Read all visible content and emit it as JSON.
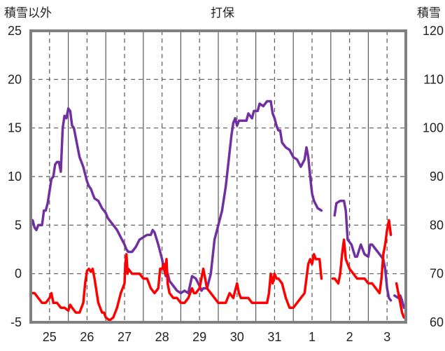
{
  "chart_data": {
    "type": "line",
    "title": "打保",
    "ylabel_left": "積雪以外",
    "ylabel_right": "積雪",
    "x_ticks": [
      "25",
      "26",
      "27",
      "28",
      "29",
      "30",
      "31",
      "1",
      "2",
      "3"
    ],
    "y_left_ticks": [
      "25",
      "20",
      "15",
      "10",
      "5",
      "0",
      "-5"
    ],
    "y_right_ticks": [
      "120",
      "110",
      "100",
      "90",
      "80",
      "70",
      "60"
    ],
    "ylim_left": [
      -5,
      25
    ],
    "ylim_right": [
      60,
      120
    ],
    "xlim": [
      24.5,
      34.5
    ],
    "grid": true,
    "colors": {
      "snow": "#7030a0",
      "temperature": "#ff0000",
      "frame": "#808080",
      "grid": "#595959"
    },
    "series": [
      {
        "key": "snow",
        "axis": "right",
        "segments": [
          [
            [
              24.5,
              80.0
            ],
            [
              24.55,
              81.0
            ],
            [
              24.6,
              79.5
            ],
            [
              24.65,
              79.0
            ],
            [
              24.7,
              80.0
            ],
            [
              24.75,
              80.0
            ],
            [
              24.8,
              80.0
            ],
            [
              24.85,
              83.0
            ],
            [
              24.9,
              83.0
            ],
            [
              24.95,
              84.5
            ],
            [
              25.0,
              87.0
            ],
            [
              25.05,
              89.5
            ],
            [
              25.1,
              90.0
            ],
            [
              25.15,
              92.5
            ],
            [
              25.2,
              93.0
            ],
            [
              25.25,
              93.0
            ],
            [
              25.3,
              91.0
            ],
            [
              25.35,
              100.0
            ],
            [
              25.4,
              102.5
            ],
            [
              25.45,
              102.0
            ],
            [
              25.5,
              104.0
            ],
            [
              25.55,
              103.5
            ],
            [
              25.6,
              100.5
            ],
            [
              25.65,
              100.0
            ],
            [
              25.7,
              98.0
            ],
            [
              25.75,
              96.0
            ],
            [
              25.8,
              94.0
            ],
            [
              25.85,
              93.0
            ],
            [
              25.9,
              92.0
            ],
            [
              25.95,
              90.5
            ],
            [
              26.0,
              89.0
            ],
            [
              26.05,
              88.0
            ],
            [
              26.1,
              87.5
            ],
            [
              26.15,
              86.5
            ],
            [
              26.2,
              85.5
            ],
            [
              26.3,
              85.0
            ],
            [
              26.4,
              83.5
            ],
            [
              26.5,
              82.5
            ],
            [
              26.55,
              81.5
            ],
            [
              26.6,
              81.0
            ],
            [
              26.7,
              80.0
            ],
            [
              26.8,
              79.0
            ],
            [
              26.9,
              77.5
            ],
            [
              27.0,
              76.0
            ],
            [
              27.05,
              75.0
            ],
            [
              27.1,
              74.5
            ],
            [
              27.2,
              74.5
            ],
            [
              27.3,
              75.5
            ],
            [
              27.4,
              77.0
            ],
            [
              27.5,
              77.5
            ],
            [
              27.6,
              78.0
            ],
            [
              27.7,
              78.0
            ],
            [
              27.75,
              79.0
            ],
            [
              27.8,
              78.5
            ],
            [
              27.9,
              76.0
            ],
            [
              28.0,
              73.0
            ],
            [
              28.05,
              71.0
            ],
            [
              28.1,
              69.5
            ],
            [
              28.15,
              70.0
            ],
            [
              28.2,
              68.5
            ],
            [
              28.3,
              67.5
            ],
            [
              28.4,
              66.5
            ],
            [
              28.5,
              66.0
            ],
            [
              28.6,
              66.5
            ],
            [
              28.7,
              66.0
            ],
            [
              28.8,
              69.5
            ],
            [
              28.9,
              69.0
            ],
            [
              29.0,
              67.5
            ],
            [
              29.05,
              66.5
            ],
            [
              29.1,
              67.0
            ],
            [
              29.2,
              67.0
            ],
            [
              29.3,
              70.0
            ],
            [
              29.4,
              77.0
            ],
            [
              29.5,
              80.0
            ],
            [
              29.6,
              83.0
            ],
            [
              29.7,
              88.0
            ],
            [
              29.8,
              95.0
            ],
            [
              29.85,
              98.5
            ],
            [
              29.9,
              101.0
            ],
            [
              29.95,
              102.0
            ],
            [
              30.0,
              100.5
            ],
            [
              30.05,
              101.5
            ],
            [
              30.15,
              101.5
            ],
            [
              30.25,
              101.5
            ],
            [
              30.3,
              103.0
            ],
            [
              30.4,
              102.0
            ],
            [
              30.45,
              103.5
            ],
            [
              30.55,
              103.5
            ],
            [
              30.6,
              105.0
            ],
            [
              30.7,
              104.5
            ],
            [
              30.8,
              105.5
            ],
            [
              30.9,
              105.5
            ],
            [
              30.95,
              103.0
            ],
            [
              31.0,
              102.0
            ],
            [
              31.05,
              100.5
            ],
            [
              31.1,
              99.5
            ],
            [
              31.15,
              99.5
            ],
            [
              31.2,
              97.0
            ],
            [
              31.3,
              96.0
            ],
            [
              31.4,
              95.5
            ],
            [
              31.5,
              94.0
            ],
            [
              31.6,
              93.5
            ],
            [
              31.7,
              92.0
            ],
            [
              31.8,
              93.5
            ],
            [
              31.85,
              96.0
            ],
            [
              31.9,
              94.0
            ],
            [
              31.95,
              90.0
            ],
            [
              32.0,
              86.5
            ],
            [
              32.05,
              85.0
            ],
            [
              32.15,
              83.5
            ],
            [
              32.25,
              83.0
            ]
          ],
          [
            [
              32.6,
              82.0
            ],
            [
              32.65,
              84.5
            ],
            [
              32.75,
              85.0
            ],
            [
              32.85,
              85.0
            ],
            [
              32.9,
              83.0
            ],
            [
              32.95,
              77.0
            ],
            [
              33.05,
              76.0
            ],
            [
              33.15,
              73.5
            ],
            [
              33.2,
              73.5
            ],
            [
              33.3,
              76.0
            ],
            [
              33.4,
              74.0
            ],
            [
              33.5,
              73.5
            ],
            [
              33.55,
              76.0
            ],
            [
              33.6,
              76.0
            ],
            [
              33.7,
              75.0
            ],
            [
              33.8,
              74.0
            ],
            [
              33.9,
              73.0
            ],
            [
              33.95,
              71.0
            ],
            [
              34.0,
              67.0
            ],
            [
              34.05,
              65.0
            ],
            [
              34.1,
              64.5
            ]
          ],
          [
            [
              34.2,
              65.5
            ],
            [
              34.3,
              65.0
            ],
            [
              34.35,
              65.5
            ],
            [
              34.4,
              64.5
            ],
            [
              34.45,
              63.0
            ]
          ]
        ]
      },
      {
        "key": "temperature",
        "axis": "left",
        "segments": [
          [
            [
              24.5,
              -2.0
            ],
            [
              24.6,
              -2.0
            ],
            [
              24.7,
              -2.5
            ],
            [
              24.8,
              -3.0
            ],
            [
              24.9,
              -3.0
            ],
            [
              25.0,
              -2.5
            ],
            [
              25.05,
              -2.0
            ],
            [
              25.1,
              -3.0
            ],
            [
              25.2,
              -3.0
            ],
            [
              25.3,
              -3.5
            ],
            [
              25.4,
              -3.5
            ],
            [
              25.5,
              -3.8
            ],
            [
              25.55,
              -3.2
            ],
            [
              25.6,
              -3.5
            ],
            [
              25.7,
              -4.0
            ],
            [
              25.8,
              -4.0
            ],
            [
              25.9,
              -3.0
            ],
            [
              25.95,
              -1.0
            ],
            [
              26.0,
              0.3
            ],
            [
              26.05,
              0.5
            ],
            [
              26.1,
              0.2
            ],
            [
              26.15,
              0.5
            ],
            [
              26.2,
              -0.5
            ],
            [
              26.3,
              -3.0
            ],
            [
              26.4,
              -4.0
            ],
            [
              26.45,
              -4.0
            ],
            [
              26.5,
              -4.5
            ],
            [
              26.6,
              -4.8
            ],
            [
              26.7,
              -4.5
            ],
            [
              26.75,
              -4.0
            ],
            [
              26.8,
              -3.5
            ],
            [
              26.9,
              -2.0
            ],
            [
              27.0,
              -1.0
            ],
            [
              27.02,
              1.0
            ],
            [
              27.05,
              2.0
            ],
            [
              27.08,
              0.0
            ],
            [
              27.1,
              0.5
            ],
            [
              27.2,
              0.0
            ],
            [
              27.3,
              0.0
            ],
            [
              27.4,
              0.0
            ],
            [
              27.5,
              -0.5
            ],
            [
              27.6,
              -0.5
            ],
            [
              27.7,
              -1.5
            ],
            [
              27.8,
              -2.0
            ],
            [
              27.9,
              -1.5
            ],
            [
              27.95,
              0.5
            ],
            [
              28.0,
              0.5
            ],
            [
              28.05,
              1.0
            ],
            [
              28.08,
              0.0
            ],
            [
              28.12,
              1.5
            ],
            [
              28.15,
              -1.0
            ],
            [
              28.2,
              -2.0
            ],
            [
              28.3,
              -2.5
            ],
            [
              28.4,
              -2.5
            ],
            [
              28.5,
              -3.0
            ],
            [
              28.6,
              -3.0
            ],
            [
              28.7,
              -2.5
            ],
            [
              28.8,
              -1.5
            ],
            [
              28.85,
              -2.0
            ],
            [
              28.9,
              -2.0
            ],
            [
              29.0,
              -1.5
            ],
            [
              29.05,
              -0.5
            ],
            [
              29.1,
              0.5
            ],
            [
              29.15,
              -0.5
            ],
            [
              29.2,
              -1.5
            ],
            [
              29.3,
              -2.0
            ],
            [
              29.4,
              -2.5
            ],
            [
              29.5,
              -3.0
            ],
            [
              29.6,
              -3.0
            ],
            [
              29.7,
              -3.0
            ],
            [
              29.8,
              -2.0
            ],
            [
              29.9,
              -2.5
            ],
            [
              30.0,
              -1.0
            ],
            [
              30.05,
              -2.0
            ],
            [
              30.1,
              -2.5
            ],
            [
              30.2,
              -2.5
            ],
            [
              30.3,
              -2.5
            ],
            [
              30.4,
              -3.0
            ],
            [
              30.5,
              -3.0
            ],
            [
              30.6,
              -3.0
            ],
            [
              30.7,
              -3.0
            ],
            [
              30.8,
              -3.0
            ],
            [
              30.85,
              -2.0
            ],
            [
              30.9,
              0.0
            ],
            [
              30.95,
              -1.0
            ],
            [
              31.0,
              0.0
            ],
            [
              31.05,
              -0.5
            ],
            [
              31.1,
              -0.5
            ],
            [
              31.2,
              -1.0
            ],
            [
              31.3,
              -2.5
            ],
            [
              31.4,
              -3.5
            ],
            [
              31.5,
              -3.5
            ],
            [
              31.6,
              -3.0
            ],
            [
              31.7,
              -2.5
            ],
            [
              31.8,
              -2.0
            ],
            [
              31.9,
              1.0
            ],
            [
              31.95,
              1.5
            ],
            [
              32.0,
              1.0
            ],
            [
              32.05,
              2.0
            ],
            [
              32.1,
              1.5
            ],
            [
              32.15,
              1.5
            ],
            [
              32.2,
              1.5
            ],
            [
              32.25,
              -0.5
            ]
          ],
          [
            [
              32.55,
              -0.5
            ],
            [
              32.6,
              -0.5
            ],
            [
              32.7,
              -1.0
            ],
            [
              32.75,
              0.0
            ],
            [
              32.8,
              2.0
            ],
            [
              32.85,
              3.5
            ],
            [
              32.9,
              1.5
            ],
            [
              32.95,
              1.0
            ],
            [
              33.0,
              0.5
            ],
            [
              33.1,
              0.0
            ],
            [
              33.2,
              -0.5
            ],
            [
              33.3,
              -0.5
            ],
            [
              33.4,
              -0.5
            ],
            [
              33.5,
              -1.0
            ],
            [
              33.6,
              -1.0
            ],
            [
              33.7,
              -1.5
            ],
            [
              33.8,
              -2.0
            ],
            [
              33.85,
              -0.5
            ],
            [
              33.9,
              2.0
            ],
            [
              33.95,
              3.0
            ],
            [
              34.0,
              4.5
            ],
            [
              34.05,
              5.5
            ],
            [
              34.1,
              4.0
            ]
          ],
          [
            [
              34.25,
              -1.0
            ],
            [
              34.3,
              -2.0
            ],
            [
              34.35,
              -3.0
            ],
            [
              34.4,
              -4.0
            ],
            [
              34.45,
              -4.5
            ]
          ]
        ]
      }
    ]
  }
}
